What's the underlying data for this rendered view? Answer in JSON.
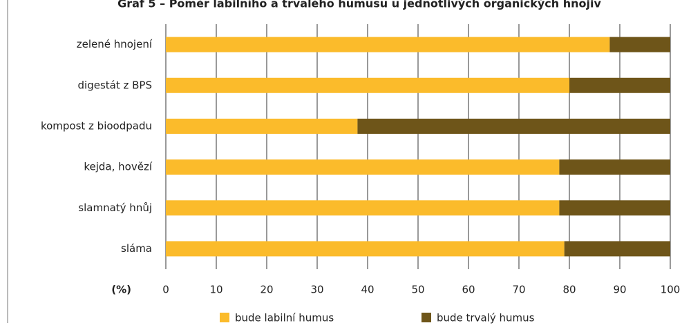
{
  "chart_data": {
    "type": "stacked_barh",
    "title": "Graf 5 – Poměr labilního a trvalého humusu u jednotlivých organických hnojiv",
    "xlabel": "(%)",
    "categories": [
      "zelené hnojení",
      "digestát z BPS",
      "kompost z bioodpadu",
      "kejda, hovězí",
      "slamnatý hnůj",
      "sláma"
    ],
    "series": [
      {
        "name": "bude labilní humus",
        "color": "#fbbb2b",
        "values": [
          88,
          80,
          38,
          78,
          78,
          79
        ]
      },
      {
        "name": "bude trvalý humus",
        "color": "#6e5519",
        "values": [
          12,
          20,
          62,
          22,
          22,
          21
        ]
      }
    ],
    "xlim": [
      0,
      100
    ],
    "xticks": [
      0,
      10,
      20,
      30,
      40,
      50,
      60,
      70,
      80,
      90,
      100
    ],
    "grid": true
  }
}
